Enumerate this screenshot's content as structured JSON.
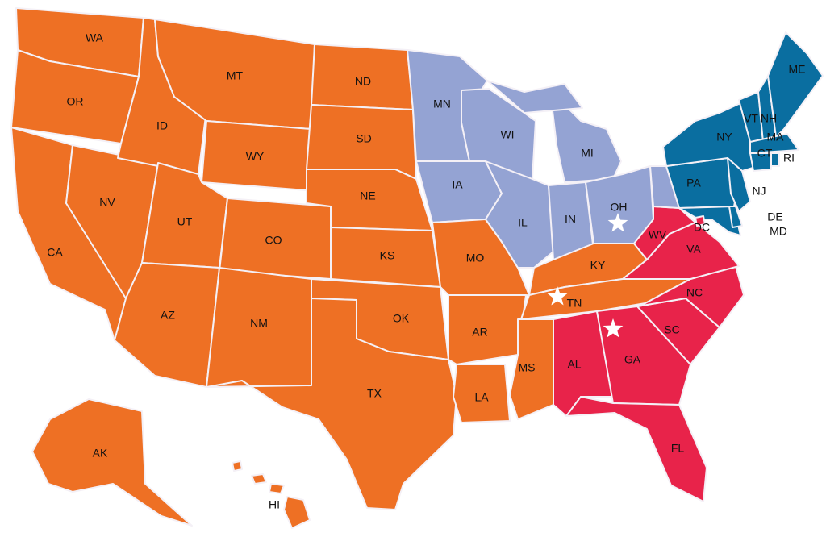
{
  "colors": {
    "orange": "#EE7024",
    "lavender": "#94A3D3",
    "blue": "#0A6EA0",
    "red": "#E8234A",
    "star": "#FFFFFF"
  },
  "states": {
    "WA": "orange",
    "OR": "orange",
    "CA": "orange",
    "NV": "orange",
    "ID": "orange",
    "MT": "orange",
    "WY": "orange",
    "UT": "orange",
    "CO": "orange",
    "AZ": "orange",
    "NM": "orange",
    "ND": "orange",
    "SD": "orange",
    "NE": "orange",
    "KS": "orange",
    "OK": "orange",
    "TX": "orange",
    "MO": "orange",
    "AR": "orange",
    "LA": "orange",
    "MS": "orange",
    "KY": "orange",
    "TN": "orange",
    "AK": "orange",
    "HI": "orange",
    "MN": "lavender",
    "IA": "lavender",
    "WI": "lavender",
    "IL": "lavender",
    "MI": "lavender",
    "IN": "lavender",
    "OH": "lavender",
    "PAW": "lavender",
    "WV": "red",
    "VA": "red",
    "NC": "red",
    "SC": "red",
    "GA": "red",
    "AL": "red",
    "FL": "red",
    "DC": "red",
    "PA": "blue",
    "NY": "blue",
    "NJ": "blue",
    "DE": "blue",
    "MD": "blue",
    "VT": "blue",
    "NH": "blue",
    "ME": "blue",
    "MA": "blue",
    "CT": "blue",
    "RI": "blue"
  },
  "labels": {
    "WA": "WA",
    "OR": "OR",
    "CA": "CA",
    "NV": "NV",
    "ID": "ID",
    "MT": "MT",
    "WY": "WY",
    "UT": "UT",
    "CO": "CO",
    "AZ": "AZ",
    "NM": "NM",
    "ND": "ND",
    "SD": "SD",
    "NE": "NE",
    "KS": "KS",
    "OK": "OK",
    "TX": "TX",
    "MN": "MN",
    "IA": "IA",
    "MO": "MO",
    "AR": "AR",
    "LA": "LA",
    "WI": "WI",
    "IL": "IL",
    "MI": "MI",
    "IN": "IN",
    "OH": "OH",
    "KY": "KY",
    "TN": "TN",
    "MS": "MS",
    "AL": "AL",
    "GA": "GA",
    "FL": "FL",
    "SC": "SC",
    "NC": "NC",
    "VA": "VA",
    "WV": "WV",
    "DC": "DC",
    "PA": "PA",
    "NY": "NY",
    "NJ": "NJ",
    "DE": "DE",
    "MD": "MD",
    "VT": "VT",
    "NH": "NH",
    "ME": "ME",
    "MA": "MA",
    "CT": "CT",
    "RI": "RI",
    "AK": "AK",
    "HI": "HI"
  },
  "markers": [
    {
      "type": "star",
      "state": "OH"
    },
    {
      "type": "star",
      "state": "TN"
    },
    {
      "type": "star",
      "state": "GA"
    }
  ]
}
